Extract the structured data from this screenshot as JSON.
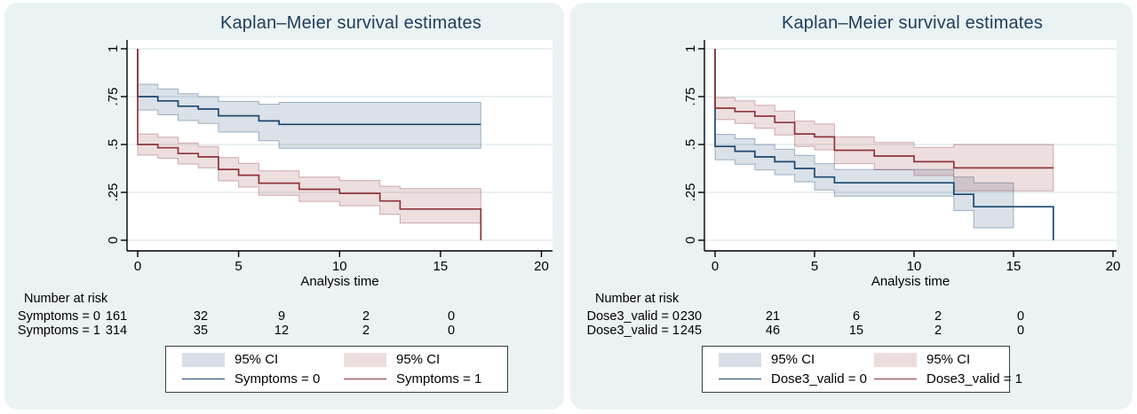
{
  "page": {
    "background": "#ffffff"
  },
  "colors": {
    "card_background": "#eaf2f3",
    "plot_background": "#ffffff",
    "gridline": "#dce8ea",
    "axis": "#000000",
    "title_text": "#1e3d5c",
    "text": "#000000",
    "navy_line": "#1a476f",
    "maroon_line": "#90353b",
    "navy_band_solid": "#d8dfe9",
    "maroon_band_solid": "#ecdddd",
    "legend_border": "#383f42"
  },
  "chart_data": [
    {
      "type": "line",
      "subtype": "kaplan-meier-step",
      "title": "Kaplan–Meier survival estimates",
      "xlabel": "Analysis time",
      "xlim": [
        0,
        20
      ],
      "ylim": [
        0,
        1
      ],
      "x_ticks": [
        "0",
        "5",
        "10",
        "15",
        "20"
      ],
      "y_ticks": [
        "0",
        ".25",
        ".5",
        ".75",
        "1"
      ],
      "grid": "horizontal",
      "legend_position": "bottom",
      "series": [
        {
          "name": "Symptoms = 0",
          "ci_label": "95% CI",
          "color": "#1a476f",
          "start": 1,
          "drop_to_zero_at_end": false,
          "band_end": 17,
          "steps": [
            [
              0,
              1,
              0.75,
              0.68,
              0.815
            ],
            [
              1,
              2,
              0.728,
              0.655,
              0.79
            ],
            [
              2,
              3,
              0.7,
              0.625,
              0.765
            ],
            [
              3,
              4,
              0.685,
              0.61,
              0.75
            ],
            [
              4,
              6,
              0.65,
              0.565,
              0.725
            ],
            [
              6,
              7,
              0.623,
              0.52,
              0.71
            ],
            [
              7,
              17,
              0.605,
              0.48,
              0.72
            ]
          ]
        },
        {
          "name": "Symptoms = 1",
          "ci_label": "95% CI",
          "color": "#90353b",
          "start": 1,
          "drop_to_zero_at_end": true,
          "band_end": 17,
          "steps": [
            [
              0,
              1,
              0.5,
              0.445,
              0.555
            ],
            [
              1,
              2,
              0.483,
              0.428,
              0.538
            ],
            [
              2,
              3,
              0.453,
              0.398,
              0.508
            ],
            [
              3,
              4,
              0.435,
              0.378,
              0.49
            ],
            [
              4,
              5,
              0.37,
              0.31,
              0.432
            ],
            [
              5,
              6,
              0.34,
              0.278,
              0.402
            ],
            [
              6,
              8,
              0.298,
              0.235,
              0.362
            ],
            [
              8,
              10,
              0.266,
              0.203,
              0.33
            ],
            [
              10,
              12,
              0.245,
              0.18,
              0.312
            ],
            [
              12,
              13,
              0.205,
              0.135,
              0.282
            ],
            [
              13,
              17,
              0.163,
              0.09,
              0.27
            ]
          ]
        }
      ],
      "risk_table": {
        "title": "Number at risk",
        "times": [
          0,
          5,
          10,
          15,
          20
        ],
        "rows": [
          {
            "label": "Symptoms = 0",
            "counts": [
              "161",
              "32",
              "9",
              "2",
              "0"
            ]
          },
          {
            "label": "Symptoms = 1",
            "counts": [
              "314",
              "35",
              "12",
              "2",
              "0"
            ]
          }
        ]
      }
    },
    {
      "type": "line",
      "subtype": "kaplan-meier-step",
      "title": "Kaplan–Meier survival estimates",
      "xlabel": "Analysis time",
      "xlim": [
        0,
        20
      ],
      "ylim": [
        0,
        1
      ],
      "x_ticks": [
        "0",
        "5",
        "10",
        "15",
        "20"
      ],
      "y_ticks": [
        "0",
        ".25",
        ".5",
        ".75",
        "1"
      ],
      "grid": "horizontal",
      "legend_position": "bottom",
      "series": [
        {
          "name": "Dose3_valid = 0",
          "ci_label": "95% CI",
          "color": "#1a476f",
          "start": 1,
          "drop_to_zero_at_end": true,
          "band_end": 15,
          "steps": [
            [
              0,
              1,
              0.49,
              0.42,
              0.553
            ],
            [
              1,
              2,
              0.465,
              0.397,
              0.53
            ],
            [
              2,
              3,
              0.435,
              0.367,
              0.5
            ],
            [
              3,
              4,
              0.41,
              0.342,
              0.476
            ],
            [
              4,
              5,
              0.375,
              0.305,
              0.443
            ],
            [
              5,
              6,
              0.33,
              0.262,
              0.4
            ],
            [
              6,
              12,
              0.3,
              0.23,
              0.37
            ],
            [
              12,
              13,
              0.24,
              0.155,
              0.33
            ],
            [
              13,
              17,
              0.175,
              0.065,
              0.3
            ]
          ]
        },
        {
          "name": "Dose3_valid = 1",
          "ci_label": "95% CI",
          "color": "#90353b",
          "start": 1,
          "drop_to_zero_at_end": false,
          "band_end": 17,
          "steps": [
            [
              0,
              1,
              0.69,
              0.63,
              0.745
            ],
            [
              1,
              2,
              0.672,
              0.61,
              0.728
            ],
            [
              2,
              3,
              0.648,
              0.585,
              0.705
            ],
            [
              3,
              4,
              0.615,
              0.55,
              0.675
            ],
            [
              4,
              5,
              0.555,
              0.49,
              0.622
            ],
            [
              5,
              6,
              0.54,
              0.472,
              0.607
            ],
            [
              6,
              8,
              0.47,
              0.4,
              0.54
            ],
            [
              8,
              10,
              0.44,
              0.368,
              0.51
            ],
            [
              10,
              12,
              0.41,
              0.338,
              0.485
            ],
            [
              12,
              17,
              0.378,
              0.258,
              0.5
            ]
          ]
        }
      ],
      "risk_table": {
        "title": "Number at risk",
        "times": [
          0,
          5,
          10,
          15,
          20
        ],
        "rows": [
          {
            "label": "Dose3_valid = 0",
            "counts": [
              "230",
              "21",
              "6",
              "2",
              "0"
            ]
          },
          {
            "label": "Dose3_valid = 1",
            "counts": [
              "245",
              "46",
              "15",
              "2",
              "0"
            ]
          }
        ]
      }
    }
  ]
}
